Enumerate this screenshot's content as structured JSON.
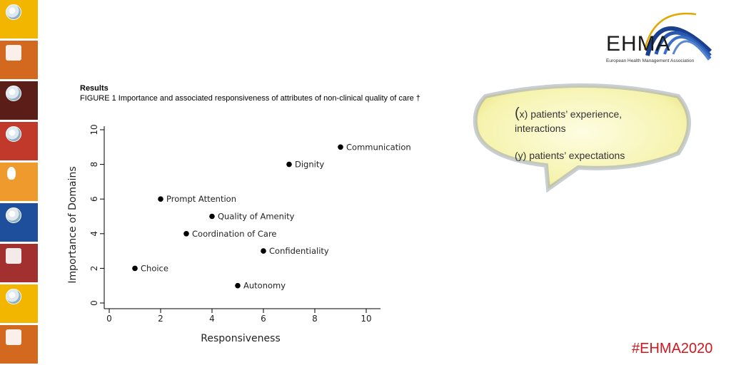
{
  "sidebar": {
    "tiles": [
      {
        "color": "#f2b600",
        "icon": "globe-icon"
      },
      {
        "color": "#d2691e",
        "icon": "puzzle-icon"
      },
      {
        "color": "#5a1d18",
        "icon": "globe-icon"
      },
      {
        "color": "#c0392b",
        "icon": "globe-icon"
      },
      {
        "color": "#ef9a2c",
        "icon": "person-icon"
      },
      {
        "color": "#1e4f9c",
        "icon": "globe-icon"
      },
      {
        "color": "#a1302e",
        "icon": "phone-icon"
      },
      {
        "color": "#f2b600",
        "icon": "globe-icon"
      },
      {
        "color": "#d2691e",
        "icon": "puzzle-icon"
      }
    ]
  },
  "header": {
    "results": "Results",
    "caption": "FIGURE 1 Importance and associated responsiveness of attributes of non-clinical quality of care †"
  },
  "callout": {
    "line1_paren": "(",
    "line1_rest": "x) patients’  experience,",
    "line2": "interactions",
    "line3": "(y) patients’ expectations"
  },
  "logo": {
    "word": "EHMA",
    "subtitle": "European Health Management Association"
  },
  "hashtag": "#EHMA2020",
  "chart_data": {
    "type": "scatter",
    "xlabel": "Responsiveness",
    "ylabel": "Importance of Domains",
    "xlim": [
      0,
      10.5
    ],
    "ylim": [
      0,
      10.2
    ],
    "xticks": [
      0,
      2,
      4,
      6,
      8,
      10
    ],
    "yticks": [
      0,
      2,
      4,
      6,
      8,
      10
    ],
    "grid": false,
    "points": [
      {
        "label": "Communication",
        "x": 9,
        "y": 9
      },
      {
        "label": "Dignity",
        "x": 7,
        "y": 8
      },
      {
        "label": "Prompt Attention",
        "x": 2,
        "y": 6
      },
      {
        "label": "Quality of Amenity",
        "x": 4,
        "y": 5
      },
      {
        "label": "Coordination of Care",
        "x": 3,
        "y": 4
      },
      {
        "label": "Confidentiality",
        "x": 6,
        "y": 3
      },
      {
        "label": "Choice",
        "x": 1,
        "y": 2
      },
      {
        "label": "Autonomy",
        "x": 5,
        "y": 1
      }
    ],
    "colors": {
      "marker": "#000000",
      "axis": "#000000"
    }
  }
}
